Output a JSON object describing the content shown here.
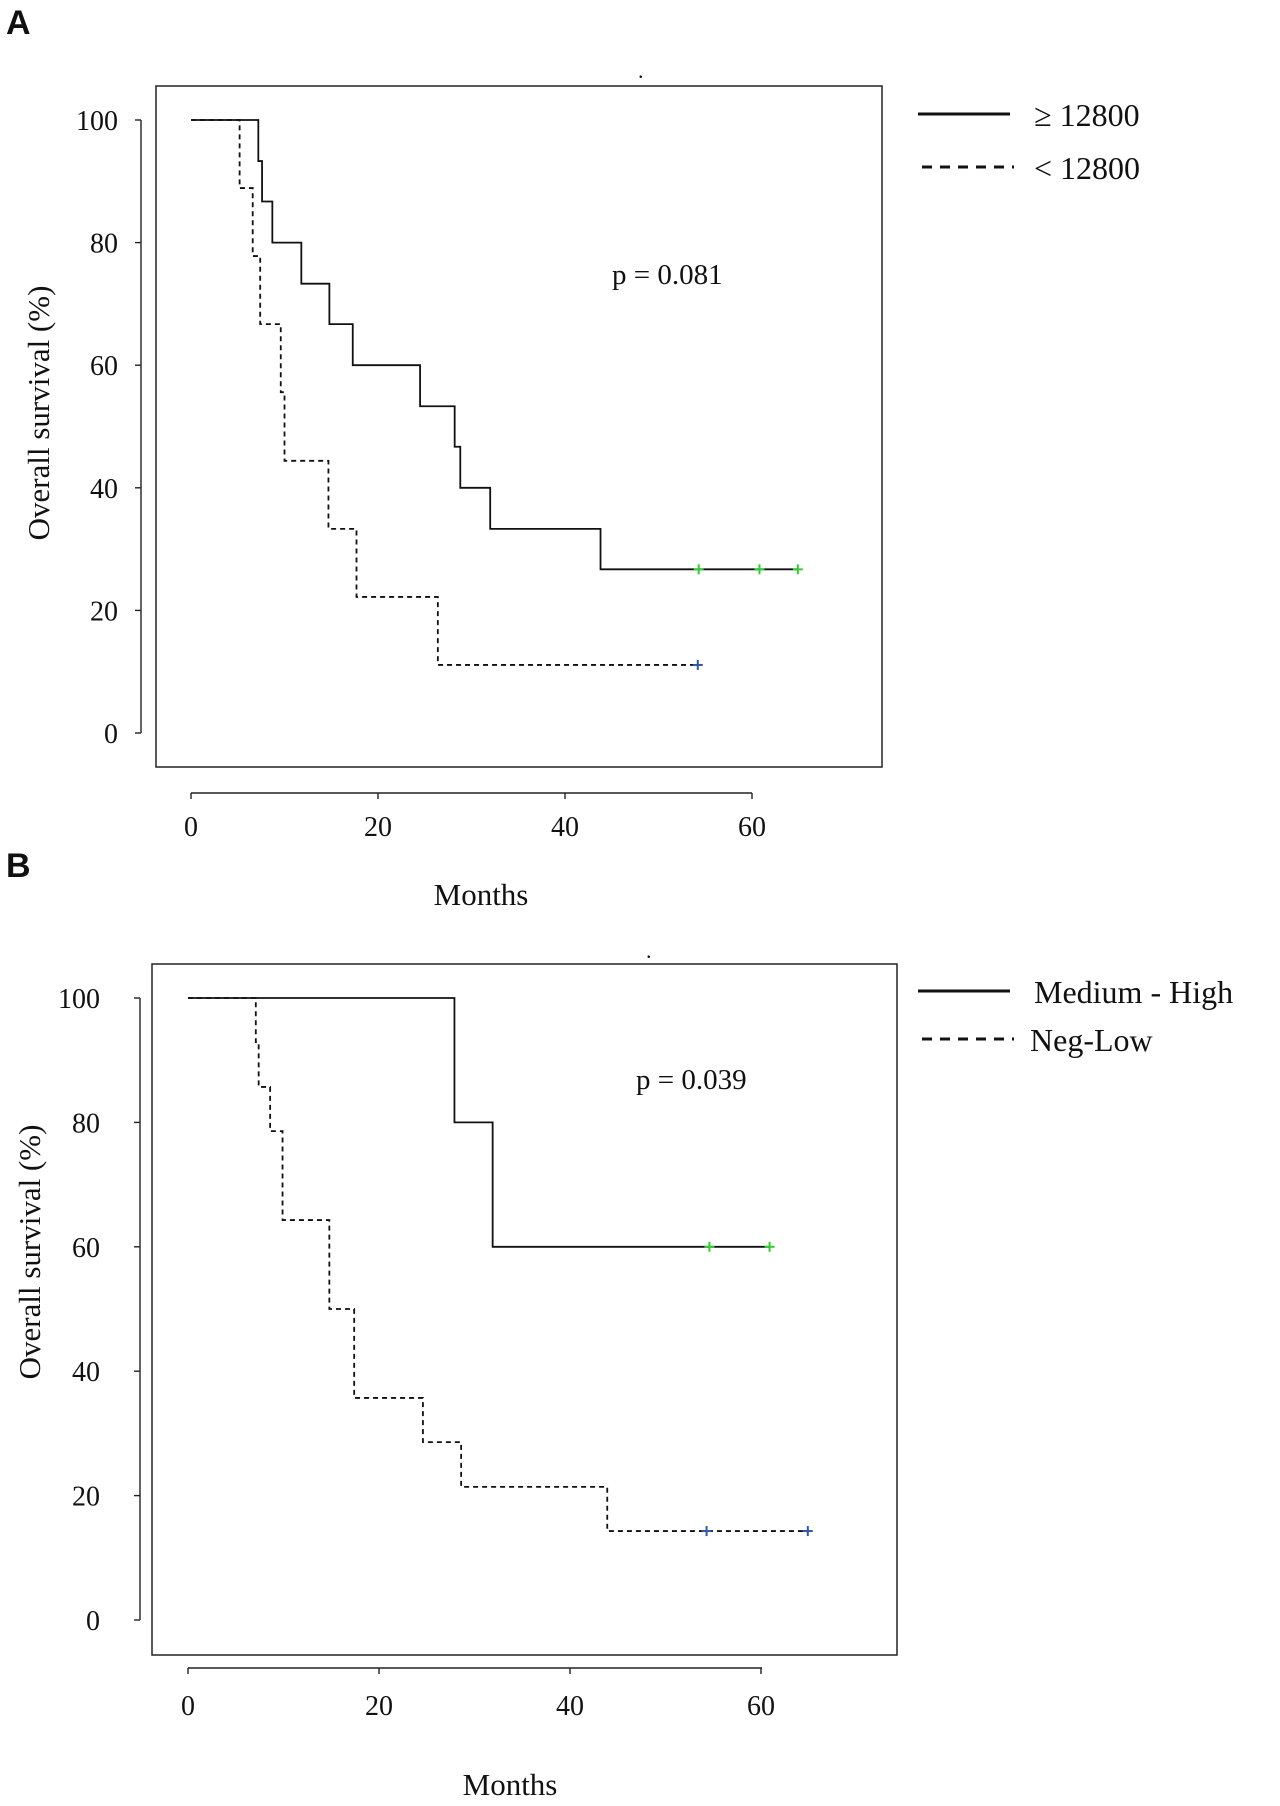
{
  "chart_data": [
    {
      "type": "line",
      "subtype": "kaplan-meier",
      "panel_label": "A",
      "title": "",
      "xlabel": "Months",
      "ylabel": "Overall survival (%)",
      "xlim": [
        -4,
        74
      ],
      "ylim": [
        -5,
        106
      ],
      "xticks": [
        0,
        20,
        40,
        60
      ],
      "yticks": [
        0,
        20,
        40,
        60,
        80,
        100
      ],
      "annotation": "p = 0.081",
      "legend_position": "outside-top-right",
      "series": [
        {
          "name": "≥ 12800",
          "style": "solid",
          "color": "#111111",
          "censor_color": "#33cc33",
          "steps": [
            [
              0,
              100
            ],
            [
              7.2,
              93.3
            ],
            [
              7.6,
              86.7
            ],
            [
              8.7,
              80
            ],
            [
              11.8,
              73.3
            ],
            [
              14.8,
              66.7
            ],
            [
              17.3,
              60
            ],
            [
              24.5,
              53.3
            ],
            [
              28.2,
              46.7
            ],
            [
              28.8,
              40
            ],
            [
              32,
              33.3
            ],
            [
              43.8,
              26.7
            ]
          ],
          "end": 65,
          "censored": [
            [
              54.3,
              26.7
            ],
            [
              60.8,
              26.7
            ],
            [
              64.9,
              26.7
            ]
          ]
        },
        {
          "name": "< 12800",
          "style": "dashed",
          "color": "#111111",
          "censor_color": "#3355aa",
          "steps": [
            [
              0,
              100
            ],
            [
              5.2,
              88.9
            ],
            [
              6.6,
              77.8
            ],
            [
              7.4,
              66.7
            ],
            [
              9.6,
              55.6
            ],
            [
              10,
              44.4
            ],
            [
              14.7,
              33.3
            ],
            [
              17.7,
              22.2
            ],
            [
              26.4,
              11.1
            ]
          ],
          "end": 54.2,
          "censored": [
            [
              54.2,
              11.1
            ]
          ]
        }
      ]
    },
    {
      "type": "line",
      "subtype": "kaplan-meier",
      "panel_label": "B",
      "title": "",
      "xlabel": "Months",
      "ylabel": "Overall survival (%)",
      "xlim": [
        -4,
        74
      ],
      "ylim": [
        -6,
        107
      ],
      "xticks": [
        0,
        20,
        40,
        60
      ],
      "yticks": [
        0,
        20,
        40,
        60,
        80,
        100
      ],
      "annotation": "p = 0.039",
      "legend_position": "outside-top-right",
      "series": [
        {
          "name": "Medium - High",
          "style": "solid",
          "color": "#111111",
          "censor_color": "#33cc33",
          "steps": [
            [
              0,
              100
            ],
            [
              27.9,
              80
            ],
            [
              31.9,
              60
            ]
          ],
          "end": 61,
          "censored": [
            [
              54.6,
              60
            ],
            [
              60.9,
              60
            ]
          ]
        },
        {
          "name": "Neg-Low",
          "style": "dashed",
          "color": "#111111",
          "censor_color": "#3355aa",
          "steps": [
            [
              0,
              100
            ],
            [
              7.1,
              92.9
            ],
            [
              7.4,
              85.7
            ],
            [
              8.6,
              78.6
            ],
            [
              9.9,
              64.3
            ],
            [
              14.8,
              50
            ],
            [
              17.4,
              35.7
            ],
            [
              24.6,
              28.6
            ],
            [
              28.6,
              21.4
            ],
            [
              43.9,
              14.3
            ]
          ],
          "end": 65,
          "censored": [
            [
              54.3,
              14.3
            ],
            [
              64.9,
              14.3
            ]
          ]
        }
      ]
    }
  ]
}
